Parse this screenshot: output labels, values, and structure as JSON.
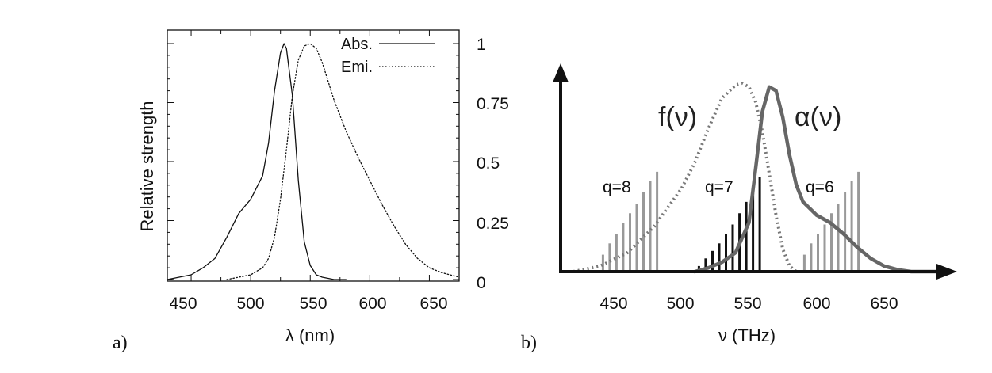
{
  "chart_data": [
    {
      "panel": "a)",
      "type": "line",
      "xlabel": "λ (nm)",
      "ylabel": "Relative strength",
      "xlim": [
        430,
        675
      ],
      "ylim": [
        0,
        1
      ],
      "xticks": [
        "450",
        "500",
        "550",
        "600",
        "650"
      ],
      "yticks": [
        "0",
        "0.25",
        "0.5",
        "0.75",
        "1"
      ],
      "y_axis_side": "right",
      "legend_position": "top-right",
      "series": [
        {
          "name": "Abs.",
          "style": "solid",
          "x": [
            430,
            450,
            460,
            470,
            480,
            490,
            495,
            500,
            510,
            515,
            520,
            525,
            528,
            530,
            535,
            540,
            545,
            550,
            555,
            560,
            570,
            580
          ],
          "y": [
            0.0,
            0.02,
            0.05,
            0.09,
            0.18,
            0.28,
            0.31,
            0.34,
            0.44,
            0.58,
            0.8,
            0.96,
            1.0,
            0.98,
            0.78,
            0.42,
            0.16,
            0.06,
            0.02,
            0.01,
            0.0,
            0.0
          ]
        },
        {
          "name": "Emi.",
          "style": "dotted",
          "x": [
            480,
            490,
            500,
            510,
            515,
            520,
            525,
            530,
            535,
            540,
            545,
            550,
            555,
            560,
            565,
            570,
            580,
            590,
            600,
            610,
            620,
            630,
            640,
            650,
            660,
            675
          ],
          "y": [
            0.0,
            0.01,
            0.02,
            0.05,
            0.09,
            0.18,
            0.34,
            0.55,
            0.78,
            0.93,
            0.99,
            1.0,
            0.98,
            0.92,
            0.84,
            0.76,
            0.63,
            0.52,
            0.42,
            0.32,
            0.23,
            0.15,
            0.09,
            0.05,
            0.03,
            0.01
          ]
        }
      ]
    },
    {
      "panel": "b)",
      "type": "line",
      "xlabel": "ν (THz)",
      "xlim": [
        410,
        695
      ],
      "ylim": [
        0,
        1
      ],
      "xticks": [
        "450",
        "500",
        "550",
        "600",
        "650"
      ],
      "series": [
        {
          "name": "f(ν)",
          "style": "dotted-thick",
          "color": "#777777",
          "x": [
            420,
            440,
            460,
            480,
            500,
            510,
            520,
            530,
            540,
            545,
            550,
            555,
            560,
            565,
            570,
            575,
            580,
            585
          ],
          "y": [
            0.0,
            0.03,
            0.1,
            0.24,
            0.44,
            0.58,
            0.76,
            0.92,
            0.99,
            1.0,
            0.98,
            0.9,
            0.74,
            0.52,
            0.3,
            0.12,
            0.03,
            0.0
          ]
        },
        {
          "name": "α(ν)",
          "style": "solid-thick",
          "color": "#666666",
          "x": [
            510,
            520,
            530,
            540,
            550,
            555,
            560,
            565,
            570,
            575,
            580,
            585,
            590,
            600,
            610,
            620,
            630,
            640,
            650,
            660,
            670,
            690
          ],
          "y": [
            0.0,
            0.02,
            0.05,
            0.1,
            0.26,
            0.55,
            0.85,
            0.98,
            0.96,
            0.82,
            0.62,
            0.46,
            0.37,
            0.3,
            0.26,
            0.2,
            0.13,
            0.07,
            0.03,
            0.01,
            0.0,
            0.0
          ]
        }
      ],
      "mode_groups": [
        {
          "label": "q=8",
          "color": "#999999",
          "x": [
            442,
            447,
            452,
            457,
            462,
            467,
            472,
            477,
            482
          ],
          "heights": [
            0.09,
            0.15,
            0.2,
            0.26,
            0.31,
            0.36,
            0.42,
            0.48,
            0.53
          ]
        },
        {
          "label": "q=7",
          "color": "#111111",
          "x": [
            513,
            518,
            523,
            528,
            533,
            538,
            543,
            548,
            553,
            558
          ],
          "heights": [
            0.03,
            0.07,
            0.11,
            0.15,
            0.2,
            0.25,
            0.31,
            0.37,
            0.43,
            0.5
          ]
        },
        {
          "label": "q=6",
          "color": "#999999",
          "x": [
            591,
            596,
            601,
            606,
            611,
            616,
            621,
            626,
            631
          ],
          "heights": [
            0.09,
            0.15,
            0.2,
            0.25,
            0.31,
            0.36,
            0.42,
            0.48,
            0.53
          ]
        }
      ]
    }
  ]
}
